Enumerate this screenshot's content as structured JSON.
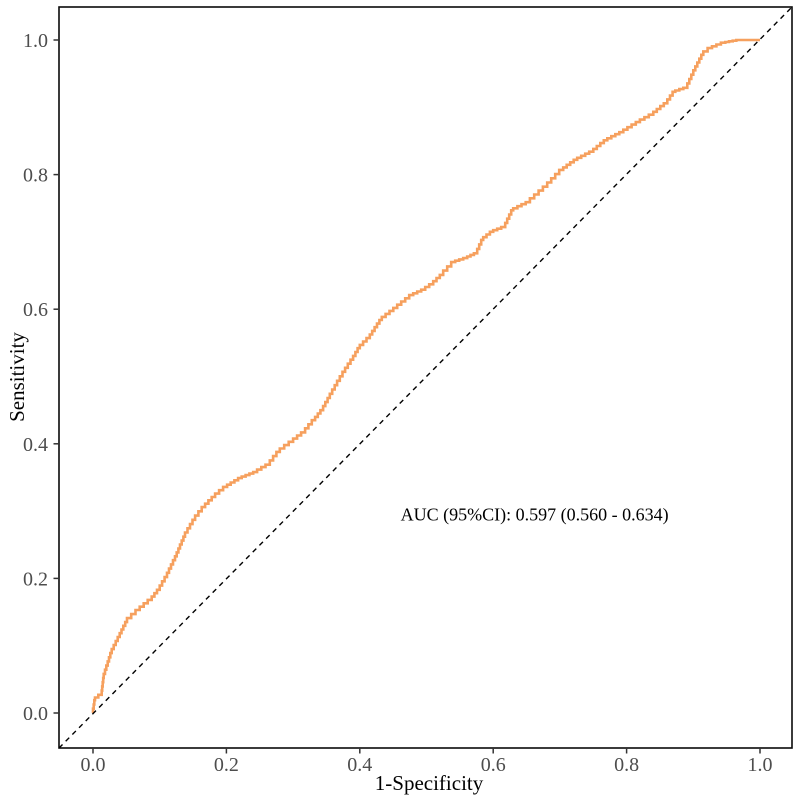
{
  "page": {
    "background": "#ffffff"
  },
  "chart_data": {
    "type": "line",
    "subtype": "roc-curve",
    "title": "",
    "xlabel": "1-Specificity",
    "ylabel": "Sensitivity",
    "xlim": [
      0,
      1
    ],
    "ylim": [
      0,
      1
    ],
    "grid": false,
    "legend": "none",
    "x_ticks": [
      0.0,
      0.2,
      0.4,
      0.6,
      0.8,
      1.0
    ],
    "x_tick_labels": [
      "0.0",
      "0.2",
      "0.4",
      "0.6",
      "0.8",
      "1.0"
    ],
    "y_ticks": [
      0.0,
      0.2,
      0.4,
      0.6,
      0.8,
      1.0
    ],
    "y_tick_labels": [
      "0.0",
      "0.2",
      "0.4",
      "0.6",
      "0.8",
      "1.0"
    ],
    "annotation": {
      "label": "AUC (95%CI): 0.597 (0.560 - 0.634)",
      "x": 0.662,
      "y": 0.295
    },
    "auc": {
      "value": 0.597,
      "ci_lower": 0.56,
      "ci_upper": 0.634,
      "ci_level": "95%"
    },
    "series": [
      {
        "name": "roc-curve",
        "render": "step",
        "color": "#F6A05E",
        "stroke_width": 2.6,
        "points": [
          [
            0.0,
            0.0
          ],
          [
            0.003,
            0.019
          ],
          [
            0.013,
            0.027
          ],
          [
            0.016,
            0.052
          ],
          [
            0.028,
            0.089
          ],
          [
            0.04,
            0.113
          ],
          [
            0.051,
            0.135
          ],
          [
            0.07,
            0.153
          ],
          [
            0.088,
            0.168
          ],
          [
            0.1,
            0.183
          ],
          [
            0.111,
            0.202
          ],
          [
            0.123,
            0.227
          ],
          [
            0.138,
            0.262
          ],
          [
            0.153,
            0.287
          ],
          [
            0.168,
            0.306
          ],
          [
            0.183,
            0.321
          ],
          [
            0.201,
            0.336
          ],
          [
            0.223,
            0.349
          ],
          [
            0.246,
            0.358
          ],
          [
            0.265,
            0.369
          ],
          [
            0.28,
            0.388
          ],
          [
            0.3,
            0.403
          ],
          [
            0.318,
            0.417
          ],
          [
            0.333,
            0.435
          ],
          [
            0.345,
            0.45
          ],
          [
            0.355,
            0.468
          ],
          [
            0.366,
            0.487
          ],
          [
            0.378,
            0.507
          ],
          [
            0.39,
            0.525
          ],
          [
            0.4,
            0.542
          ],
          [
            0.415,
            0.557
          ],
          [
            0.433,
            0.584
          ],
          [
            0.456,
            0.602
          ],
          [
            0.48,
            0.621
          ],
          [
            0.498,
            0.629
          ],
          [
            0.51,
            0.637
          ],
          [
            0.525,
            0.651
          ],
          [
            0.543,
            0.67
          ],
          [
            0.561,
            0.676
          ],
          [
            0.576,
            0.683
          ],
          [
            0.585,
            0.703
          ],
          [
            0.6,
            0.715
          ],
          [
            0.618,
            0.722
          ],
          [
            0.63,
            0.747
          ],
          [
            0.655,
            0.759
          ],
          [
            0.681,
            0.782
          ],
          [
            0.705,
            0.807
          ],
          [
            0.726,
            0.822
          ],
          [
            0.75,
            0.834
          ],
          [
            0.771,
            0.851
          ],
          [
            0.795,
            0.863
          ],
          [
            0.82,
            0.878
          ],
          [
            0.84,
            0.889
          ],
          [
            0.861,
            0.906
          ],
          [
            0.873,
            0.923
          ],
          [
            0.891,
            0.929
          ],
          [
            0.903,
            0.955
          ],
          [
            0.915,
            0.978
          ],
          [
            0.928,
            0.988
          ],
          [
            0.948,
            0.996
          ],
          [
            0.97,
            1.0
          ],
          [
            1.0,
            1.0
          ]
        ]
      },
      {
        "name": "chance-line",
        "render": "dashed-diagonal",
        "color": "#000000",
        "stroke_width": 1.4,
        "points": [
          [
            0,
            0
          ],
          [
            1,
            1
          ]
        ]
      }
    ]
  },
  "style": {
    "curve_color": "#F6A05E",
    "diagonal_color": "#000000",
    "panel_border_color": "#0a0a0a",
    "tick_color": "#333333",
    "tick_label_color": "#4d4d4d",
    "text_color": "#000000"
  }
}
